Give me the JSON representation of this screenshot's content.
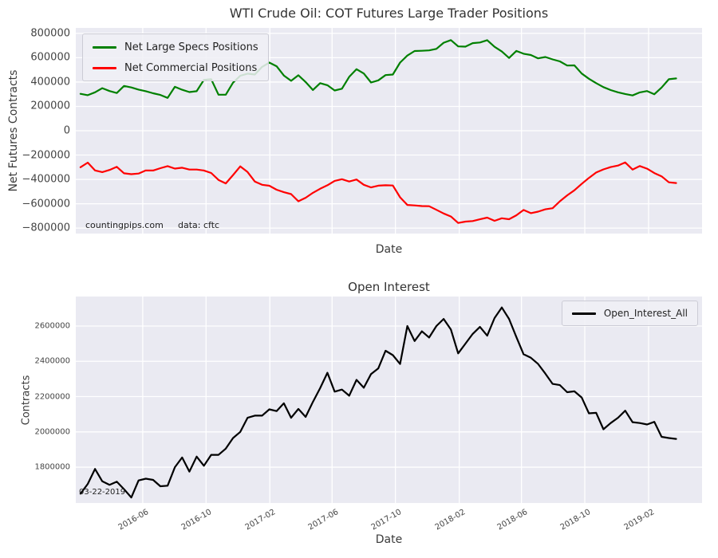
{
  "figure": {
    "background": "#ffffff",
    "axes_background": "#eaeaf2",
    "grid_color": "#ffffff"
  },
  "chart_data": [
    {
      "type": "line",
      "title": "WTI Crude Oil: COT Futures Large Trader Positions",
      "xlabel": "Date",
      "ylabel": "Net Futures Contracts",
      "grid": true,
      "legend_position": "upper left",
      "annotations": [
        "countingpips.com",
        "data: cftc"
      ],
      "ylim": [
        -845000,
        845000
      ],
      "xlim": [
        "2016-01-24",
        "2019-05-15"
      ],
      "ytick_values": [
        800000,
        600000,
        400000,
        200000,
        0,
        -200000,
        -400000,
        -600000,
        -800000
      ],
      "ytick_labels": [
        "800000",
        "600000",
        "400000",
        "200000",
        "0",
        "−200000",
        "−400000",
        "−600000",
        "−800000"
      ],
      "xtick_dates": [
        "2016-06-01",
        "2016-10-01",
        "2017-02-01",
        "2017-06-01",
        "2017-10-01",
        "2018-02-01",
        "2018-06-01",
        "2018-10-01",
        "2019-02-01"
      ],
      "xtick_labels": [],
      "x": [
        "2016-02-02",
        "2016-02-16",
        "2016-03-01",
        "2016-03-15",
        "2016-03-29",
        "2016-04-12",
        "2016-04-26",
        "2016-05-10",
        "2016-05-24",
        "2016-06-07",
        "2016-06-21",
        "2016-07-05",
        "2016-07-19",
        "2016-08-02",
        "2016-08-16",
        "2016-08-30",
        "2016-09-13",
        "2016-09-27",
        "2016-10-11",
        "2016-10-25",
        "2016-11-08",
        "2016-11-22",
        "2016-12-06",
        "2016-12-20",
        "2017-01-03",
        "2017-01-17",
        "2017-01-31",
        "2017-02-14",
        "2017-02-28",
        "2017-03-14",
        "2017-03-28",
        "2017-04-11",
        "2017-04-25",
        "2017-05-09",
        "2017-05-23",
        "2017-06-06",
        "2017-06-20",
        "2017-07-04",
        "2017-07-18",
        "2017-08-01",
        "2017-08-15",
        "2017-08-29",
        "2017-09-12",
        "2017-09-26",
        "2017-10-10",
        "2017-10-24",
        "2017-11-07",
        "2017-11-21",
        "2017-12-05",
        "2017-12-19",
        "2018-01-02",
        "2018-01-16",
        "2018-01-30",
        "2018-02-13",
        "2018-02-27",
        "2018-03-13",
        "2018-03-27",
        "2018-04-10",
        "2018-04-24",
        "2018-05-08",
        "2018-05-22",
        "2018-06-05",
        "2018-06-19",
        "2018-07-03",
        "2018-07-17",
        "2018-07-31",
        "2018-08-14",
        "2018-08-28",
        "2018-09-11",
        "2018-09-25",
        "2018-10-09",
        "2018-10-23",
        "2018-11-06",
        "2018-11-20",
        "2018-12-04",
        "2018-12-18",
        "2019-01-01",
        "2019-01-15",
        "2019-01-29",
        "2019-02-12",
        "2019-02-26",
        "2019-03-12",
        "2019-03-26"
      ],
      "series": [
        {
          "name": "Net Large Specs Positions",
          "color": "#008000",
          "values": [
            303000,
            292000,
            316000,
            350000,
            326000,
            310000,
            368000,
            356000,
            338000,
            325000,
            308000,
            294000,
            270000,
            361000,
            337000,
            318000,
            325000,
            418000,
            424000,
            296000,
            296000,
            395000,
            452000,
            469000,
            462000,
            525000,
            560000,
            530000,
            454000,
            410000,
            456000,
            400000,
            335000,
            391000,
            374000,
            331000,
            345000,
            443000,
            506000,
            470000,
            396000,
            414000,
            457000,
            462000,
            560000,
            618000,
            655000,
            657000,
            660000,
            673000,
            723000,
            745000,
            693000,
            691000,
            720000,
            725000,
            744000,
            690000,
            651000,
            598000,
            656000,
            633000,
            622000,
            595000,
            606000,
            586000,
            570000,
            536000,
            537000,
            470000,
            427000,
            391000,
            358000,
            334000,
            316000,
            302000,
            290000,
            315000,
            326000,
            300000,
            355000,
            423000,
            430000
          ]
        },
        {
          "name": "Net Commercial Positions",
          "color": "#ff0000",
          "values": [
            -300000,
            -262000,
            -326000,
            -340000,
            -322000,
            -297000,
            -350000,
            -357000,
            -352000,
            -326000,
            -327000,
            -308000,
            -291000,
            -311000,
            -304000,
            -319000,
            -319000,
            -327000,
            -347000,
            -404000,
            -433000,
            -364000,
            -293000,
            -339000,
            -417000,
            -444000,
            -452000,
            -485000,
            -505000,
            -521000,
            -580000,
            -551000,
            -510000,
            -477000,
            -448000,
            -412000,
            -398000,
            -417000,
            -401000,
            -444000,
            -466000,
            -451000,
            -448000,
            -450000,
            -547000,
            -610000,
            -614000,
            -619000,
            -620000,
            -650000,
            -680000,
            -705000,
            -758000,
            -747000,
            -742000,
            -728000,
            -714000,
            -740000,
            -719000,
            -727000,
            -695000,
            -651000,
            -677000,
            -665000,
            -646000,
            -637000,
            -580000,
            -531000,
            -489000,
            -437000,
            -388000,
            -343000,
            -318000,
            -299000,
            -286000,
            -261000,
            -319000,
            -290000,
            -312000,
            -348000,
            -375000,
            -424000,
            -430000
          ]
        }
      ]
    },
    {
      "type": "line",
      "title": "Open Interest",
      "xlabel": "Date",
      "ylabel": "Contracts",
      "grid": true,
      "legend_position": "upper right",
      "annotations": [
        "03-22-2019"
      ],
      "ylim": [
        1597000,
        2767000
      ],
      "xlim": [
        "2016-01-24",
        "2019-05-15"
      ],
      "ytick_values": [
        2600000,
        2400000,
        2200000,
        2000000,
        1800000
      ],
      "ytick_labels": [
        "2600000",
        "2400000",
        "2200000",
        "2000000",
        "1800000"
      ],
      "xtick_dates": [
        "2016-06-01",
        "2016-10-01",
        "2017-02-01",
        "2017-06-01",
        "2017-10-01",
        "2018-02-01",
        "2018-06-01",
        "2018-10-01",
        "2019-02-01"
      ],
      "xtick_labels": [
        "2016-06",
        "2016-10",
        "2017-02",
        "2017-06",
        "2017-10",
        "2018-02",
        "2018-06",
        "2018-10",
        "2019-02"
      ],
      "x": [
        "2016-02-02",
        "2016-02-16",
        "2016-03-01",
        "2016-03-15",
        "2016-03-29",
        "2016-04-12",
        "2016-04-26",
        "2016-05-10",
        "2016-05-24",
        "2016-06-07",
        "2016-06-21",
        "2016-07-05",
        "2016-07-19",
        "2016-08-02",
        "2016-08-16",
        "2016-08-30",
        "2016-09-13",
        "2016-09-27",
        "2016-10-11",
        "2016-10-25",
        "2016-11-08",
        "2016-11-22",
        "2016-12-06",
        "2016-12-20",
        "2017-01-03",
        "2017-01-17",
        "2017-01-31",
        "2017-02-14",
        "2017-02-28",
        "2017-03-14",
        "2017-03-28",
        "2017-04-11",
        "2017-04-25",
        "2017-05-09",
        "2017-05-23",
        "2017-06-06",
        "2017-06-20",
        "2017-07-04",
        "2017-07-18",
        "2017-08-01",
        "2017-08-15",
        "2017-08-29",
        "2017-09-12",
        "2017-09-26",
        "2017-10-10",
        "2017-10-24",
        "2017-11-07",
        "2017-11-21",
        "2017-12-05",
        "2017-12-19",
        "2018-01-02",
        "2018-01-16",
        "2018-01-30",
        "2018-02-13",
        "2018-02-27",
        "2018-03-13",
        "2018-03-27",
        "2018-04-10",
        "2018-04-24",
        "2018-05-08",
        "2018-05-22",
        "2018-06-05",
        "2018-06-19",
        "2018-07-03",
        "2018-07-17",
        "2018-07-31",
        "2018-08-14",
        "2018-08-28",
        "2018-09-11",
        "2018-09-25",
        "2018-10-09",
        "2018-10-23",
        "2018-11-06",
        "2018-11-20",
        "2018-12-04",
        "2018-12-18",
        "2019-01-01",
        "2019-01-15",
        "2019-01-29",
        "2019-02-12",
        "2019-02-26",
        "2019-03-12",
        "2019-03-26"
      ],
      "series": [
        {
          "name": "Open_Interest_All",
          "color": "#000000",
          "values": [
            1650000,
            1705000,
            1790000,
            1720000,
            1700000,
            1718000,
            1675000,
            1628000,
            1725000,
            1735000,
            1728000,
            1692000,
            1695000,
            1800000,
            1855000,
            1775000,
            1860000,
            1808000,
            1870000,
            1870000,
            1905000,
            1965000,
            2000000,
            2080000,
            2092000,
            2092000,
            2128000,
            2118000,
            2162000,
            2080000,
            2130000,
            2085000,
            2170000,
            2248000,
            2335000,
            2228000,
            2240000,
            2205000,
            2295000,
            2250000,
            2328000,
            2360000,
            2460000,
            2435000,
            2385000,
            2600000,
            2515000,
            2570000,
            2535000,
            2600000,
            2640000,
            2580000,
            2445000,
            2500000,
            2555000,
            2595000,
            2545000,
            2645000,
            2705000,
            2640000,
            2538000,
            2440000,
            2420000,
            2385000,
            2330000,
            2272000,
            2265000,
            2225000,
            2230000,
            2195000,
            2105000,
            2108000,
            2015000,
            2050000,
            2080000,
            2120000,
            2055000,
            2050000,
            2042000,
            2057000,
            1972000,
            1965000,
            1960000
          ]
        }
      ]
    }
  ]
}
